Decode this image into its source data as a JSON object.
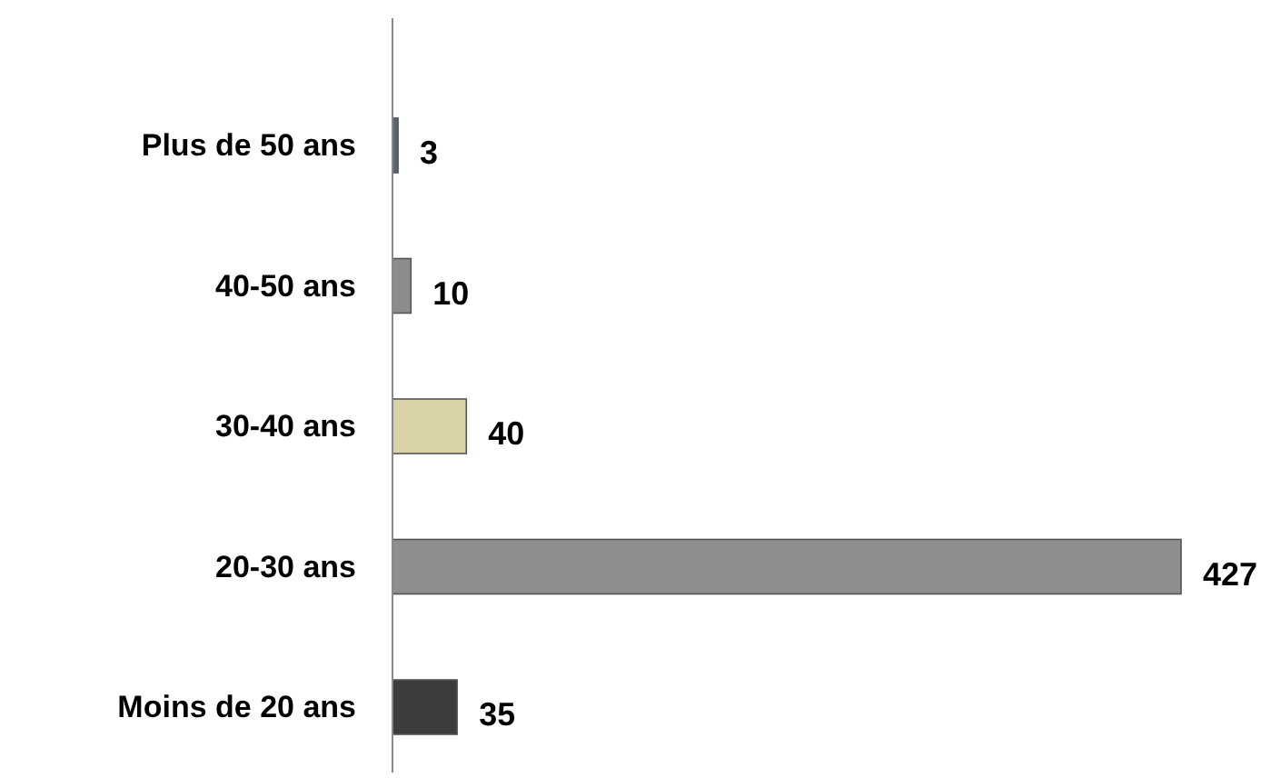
{
  "chart_data": {
    "type": "bar",
    "orientation": "horizontal",
    "categories": [
      "Plus de 50 ans",
      "40-50 ans",
      "30-40 ans",
      "20-30 ans",
      "Moins de 20 ans"
    ],
    "values": [
      3,
      10,
      40,
      427,
      35
    ],
    "colors": [
      "#5c6670",
      "#8c8c8c",
      "#d8d2a6",
      "#8e8e8e",
      "#3c3c3c"
    ],
    "data_labels": true
  }
}
